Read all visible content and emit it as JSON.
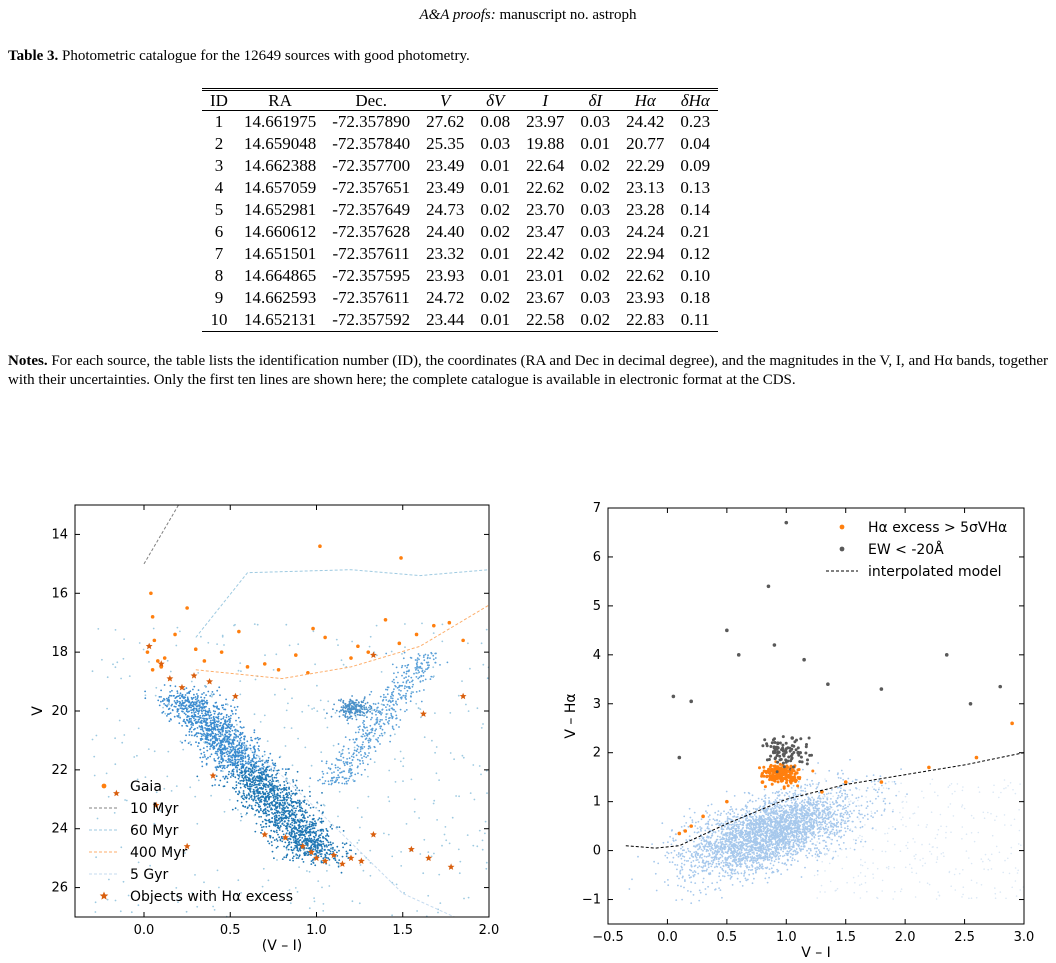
{
  "header": {
    "journal_italic": "A&A proofs:",
    "rest": " manuscript no. astroph"
  },
  "caption": {
    "label": "Table 3.",
    "text": " Photometric catalogue for the 12649 sources with good photometry."
  },
  "table": {
    "headers": [
      "ID",
      "RA",
      "Dec.",
      "V",
      "δV",
      "I",
      "δI",
      "Hα",
      "δHα"
    ],
    "rows": [
      [
        "1",
        "14.661975",
        "-72.357890",
        "27.62",
        "0.08",
        "23.97",
        "0.03",
        "24.42",
        "0.23"
      ],
      [
        "2",
        "14.659048",
        "-72.357840",
        "25.35",
        "0.03",
        "19.88",
        "0.01",
        "20.77",
        "0.04"
      ],
      [
        "3",
        "14.662388",
        "-72.357700",
        "23.49",
        "0.01",
        "22.64",
        "0.02",
        "22.29",
        "0.09"
      ],
      [
        "4",
        "14.657059",
        "-72.357651",
        "23.49",
        "0.01",
        "22.62",
        "0.02",
        "23.13",
        "0.13"
      ],
      [
        "5",
        "14.652981",
        "-72.357649",
        "24.73",
        "0.02",
        "23.70",
        "0.03",
        "23.28",
        "0.14"
      ],
      [
        "6",
        "14.660612",
        "-72.357628",
        "24.40",
        "0.02",
        "23.47",
        "0.03",
        "24.24",
        "0.21"
      ],
      [
        "7",
        "14.651501",
        "-72.357611",
        "23.32",
        "0.01",
        "22.42",
        "0.02",
        "22.94",
        "0.12"
      ],
      [
        "8",
        "14.664865",
        "-72.357595",
        "23.93",
        "0.01",
        "23.01",
        "0.02",
        "22.62",
        "0.10"
      ],
      [
        "9",
        "14.662593",
        "-72.357611",
        "24.72",
        "0.02",
        "23.67",
        "0.03",
        "23.93",
        "0.18"
      ],
      [
        "10",
        "14.652131",
        "-72.357592",
        "23.44",
        "0.01",
        "22.58",
        "0.02",
        "22.83",
        "0.11"
      ]
    ]
  },
  "notes": {
    "label": "Notes.",
    "text": " For each source, the table lists the identification number (ID), the coordinates (RA and Dec in decimal degree), and the magnitudes in the V, I, and Hα bands, together with their uncertainties. Only the first ten lines are shown here; the complete catalogue is available in electronic format at the CDS."
  },
  "chart_data": [
    {
      "type": "scatter",
      "xlabel": "(V – I)",
      "ylabel": "V",
      "xlim": [
        -0.4,
        2.0
      ],
      "ylim": [
        27,
        13
      ],
      "y_inverted": true,
      "xticks": [
        "0.0",
        "0.5",
        "1.0",
        "1.5",
        "2.0"
      ],
      "yticks": [
        "14",
        "16",
        "18",
        "20",
        "22",
        "24",
        "26"
      ],
      "legend_position": "bottom-left",
      "series": [
        {
          "name": "Gaia",
          "color": "#ff7f0e",
          "marker": "dot",
          "points": [
            [
              0.04,
              16.0
            ],
            [
              0.05,
              16.8
            ],
            [
              0.06,
              17.6
            ],
            [
              0.02,
              18.0
            ],
            [
              0.08,
              18.3
            ],
            [
              0.1,
              18.5
            ],
            [
              0.05,
              18.6
            ],
            [
              0.12,
              18.2
            ],
            [
              0.18,
              17.4
            ],
            [
              0.25,
              16.5
            ],
            [
              0.35,
              18.3
            ],
            [
              0.45,
              18.0
            ],
            [
              0.55,
              17.3
            ],
            [
              0.7,
              18.4
            ],
            [
              0.78,
              18.6
            ],
            [
              0.88,
              18.1
            ],
            [
              0.98,
              17.2
            ],
            [
              1.05,
              17.5
            ],
            [
              1.2,
              18.2
            ],
            [
              1.24,
              17.8
            ],
            [
              1.3,
              18.0
            ],
            [
              1.48,
              17.7
            ],
            [
              1.58,
              17.4
            ],
            [
              1.68,
              17.1
            ],
            [
              1.77,
              17.0
            ],
            [
              1.85,
              17.6
            ],
            [
              1.02,
              14.4
            ],
            [
              1.49,
              14.8
            ],
            [
              0.3,
              17.9
            ],
            [
              0.6,
              18.5
            ],
            [
              0.95,
              18.7
            ],
            [
              1.4,
              16.9
            ]
          ]
        },
        {
          "name": "10 Myr",
          "color": "#808080",
          "style": "dashed",
          "points": [
            [
              0.0,
              15.0
            ],
            [
              0.2,
              13.0
            ]
          ]
        },
        {
          "name": "60 Myr",
          "color": "#9ecae1",
          "style": "dashed",
          "points": [
            [
              0.3,
              17.5
            ],
            [
              0.6,
              15.3
            ],
            [
              1.2,
              15.2
            ],
            [
              1.6,
              15.4
            ],
            [
              2.0,
              15.2
            ]
          ]
        },
        {
          "name": "400 Myr",
          "color": "#fdae6b",
          "style": "dashed",
          "points": [
            [
              0.3,
              18.6
            ],
            [
              0.8,
              18.9
            ],
            [
              1.2,
              18.5
            ],
            [
              1.6,
              17.8
            ],
            [
              2.0,
              16.4
            ]
          ]
        },
        {
          "name": "5 Gyr",
          "color": "#c6dbef",
          "style": "dashed",
          "points": [
            [
              0.55,
              21.0
            ],
            [
              0.8,
              22.2
            ],
            [
              1.1,
              23.9
            ],
            [
              1.5,
              26.2
            ],
            [
              1.8,
              27.0
            ]
          ]
        },
        {
          "name": "Objects with Hα excess",
          "color": "#d95f0e",
          "marker": "star",
          "points": [
            [
              0.03,
              17.8
            ],
            [
              0.1,
              18.4
            ],
            [
              0.15,
              18.9
            ],
            [
              0.22,
              19.2
            ],
            [
              0.29,
              18.8
            ],
            [
              0.38,
              19.0
            ],
            [
              0.53,
              19.5
            ],
            [
              0.7,
              24.2
            ],
            [
              0.82,
              24.3
            ],
            [
              0.92,
              24.6
            ],
            [
              0.97,
              24.8
            ],
            [
              1.0,
              25.0
            ],
            [
              1.05,
              25.1
            ],
            [
              1.1,
              24.9
            ],
            [
              1.15,
              25.2
            ],
            [
              1.2,
              25.0
            ],
            [
              1.26,
              25.1
            ],
            [
              1.33,
              24.2
            ],
            [
              1.55,
              24.7
            ],
            [
              1.65,
              25.0
            ],
            [
              1.78,
              25.3
            ],
            [
              1.33,
              18.1
            ],
            [
              1.62,
              20.1
            ],
            [
              1.85,
              19.5
            ],
            [
              0.25,
              24.6
            ],
            [
              0.4,
              22.2
            ],
            [
              0.07,
              23.2
            ],
            [
              -0.16,
              22.8
            ]
          ]
        }
      ]
    },
    {
      "type": "scatter",
      "xlabel": "V – I",
      "ylabel": "V – Hα",
      "xlim": [
        -0.5,
        3.0
      ],
      "ylim": [
        -1.5,
        7.0
      ],
      "xticks": [
        "-0.5",
        "0.0",
        "0.5",
        "1.0",
        "1.5",
        "2.0",
        "2.5",
        "3.0"
      ],
      "yticks": [
        "-1",
        "0",
        "1",
        "2",
        "3",
        "4",
        "5",
        "6",
        "7"
      ],
      "legend_position": "top-right",
      "series": [
        {
          "name": "Hα excess > 5σVHα",
          "color": "#ff7f0e",
          "marker": "dot",
          "points": [
            [
              0.1,
              0.35
            ],
            [
              0.15,
              0.4
            ],
            [
              0.2,
              0.5
            ],
            [
              0.3,
              0.7
            ],
            [
              0.5,
              1.0
            ],
            [
              0.8,
              1.4
            ],
            [
              0.9,
              1.5
            ],
            [
              0.95,
              1.6
            ],
            [
              1.05,
              1.65
            ],
            [
              1.3,
              1.2
            ],
            [
              1.5,
              1.4
            ],
            [
              1.8,
              1.4
            ],
            [
              2.2,
              1.7
            ],
            [
              2.6,
              1.9
            ],
            [
              2.9,
              2.6
            ]
          ]
        },
        {
          "name": "EW < -20Å",
          "color": "#595959",
          "marker": "dot",
          "points": [
            [
              0.05,
              3.15
            ],
            [
              0.2,
              3.05
            ],
            [
              0.1,
              1.9
            ],
            [
              0.5,
              4.5
            ],
            [
              0.6,
              4.0
            ],
            [
              0.85,
              5.4
            ],
            [
              0.9,
              4.2
            ],
            [
              1.0,
              6.7
            ],
            [
              1.05,
              2.3
            ],
            [
              1.15,
              3.9
            ],
            [
              1.35,
              3.4
            ],
            [
              1.8,
              3.3
            ],
            [
              2.35,
              4.0
            ],
            [
              2.55,
              3.0
            ],
            [
              2.8,
              3.35
            ],
            [
              0.9,
              2.1
            ],
            [
              1.1,
              2.0
            ]
          ]
        },
        {
          "name": "interpolated model",
          "color": "#000000",
          "style": "dashed",
          "points": [
            [
              -0.35,
              0.1
            ],
            [
              -0.1,
              0.05
            ],
            [
              0.1,
              0.1
            ],
            [
              0.5,
              0.55
            ],
            [
              1.0,
              1.05
            ],
            [
              1.5,
              1.35
            ],
            [
              2.0,
              1.55
            ],
            [
              2.5,
              1.75
            ],
            [
              3.0,
              2.0
            ]
          ]
        }
      ]
    }
  ]
}
